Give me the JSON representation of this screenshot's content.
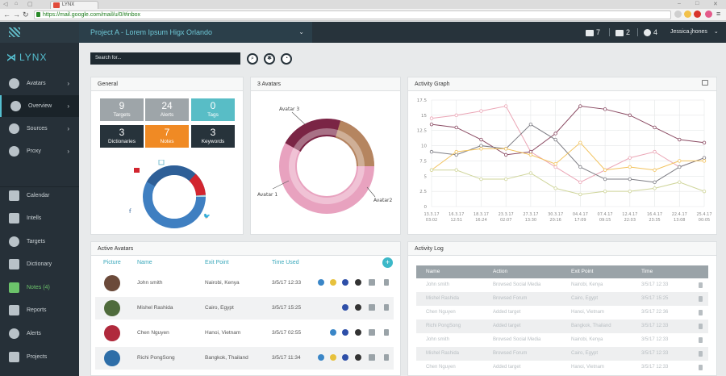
{
  "browser": {
    "tab_title": "LYNX",
    "url": "https://mail.google.com/mail/u/0/#inbox"
  },
  "sidebar": {
    "brand": "LYNX",
    "items": [
      {
        "label": "Avatars",
        "icon": "user-icon",
        "chevron": "›"
      },
      {
        "label": "Overview",
        "icon": "eye-icon",
        "chevron": "›"
      },
      {
        "label": "Sources",
        "icon": "globe-icon",
        "chevron": "›"
      },
      {
        "label": "Proxy",
        "icon": "shield-icon",
        "chevron": "›"
      },
      {
        "label": "Calendar",
        "icon": "calendar-icon"
      },
      {
        "label": "Intells",
        "icon": "search-list-icon"
      },
      {
        "label": "Targets",
        "icon": "target-icon"
      },
      {
        "label": "Dictionary",
        "icon": "book-icon"
      },
      {
        "label": "Notes (4)",
        "icon": "notes-icon"
      },
      {
        "label": "Reports",
        "icon": "report-icon"
      },
      {
        "label": "Alerts",
        "icon": "bell-icon"
      },
      {
        "label": "Projects",
        "icon": "folder-icon"
      }
    ]
  },
  "header": {
    "project": "Project A - Lorem Ipsum Higx Orlando",
    "mail_count": "7",
    "notes_count": "2",
    "tasks_count": "4",
    "user": "Jessica.jhones"
  },
  "search": {
    "placeholder": "Search for..."
  },
  "general": {
    "title": "General",
    "tiles": [
      {
        "value": "9",
        "label": "Targets",
        "color": "#9ea5a9"
      },
      {
        "value": "24",
        "label": "Alerts",
        "color": "#9ea5a9"
      },
      {
        "value": "0",
        "label": "Tags",
        "color": "#58bdc6"
      },
      {
        "value": "3",
        "label": "Dictionaries",
        "color": "#27333b"
      },
      {
        "value": "7",
        "label": "Notes",
        "color": "#f08a24"
      },
      {
        "value": "3",
        "label": "Keywords",
        "color": "#27333b"
      }
    ]
  },
  "avatars3": {
    "title": "3 Avatars",
    "labels": [
      "Avatar 3",
      "Avatar 1",
      "Avatar2"
    ]
  },
  "activity_graph": {
    "title": "Activity Graph"
  },
  "chart_data": {
    "type": "line",
    "x": [
      "13.3.17 03:02",
      "16.3.17 12:51",
      "18.3.17 16:24",
      "23.3.17 02:07",
      "27.3.17 13:30",
      "30.3.17 20:16",
      "04.4.17 17:09",
      "07.4.17 09:15",
      "12.4.17 22:03",
      "16.4.17 23:35",
      "22.4.17 13:08",
      "25.4.17 00:05"
    ],
    "ylim": [
      0,
      17.5
    ],
    "yticks": [
      "17.5",
      "15",
      "12.5",
      "10",
      "7.5",
      "5",
      "2.5",
      "0"
    ],
    "series": [
      {
        "values": [
          14.5,
          15,
          15.7,
          16.5,
          9,
          6.5,
          4,
          6,
          8,
          9,
          6.5,
          8
        ],
        "color": "#eba6b6"
      },
      {
        "values": [
          13.5,
          13,
          11,
          8.5,
          9,
          12,
          16.5,
          16,
          15,
          13,
          11,
          10.5
        ],
        "color": "#8a4a62"
      },
      {
        "values": [
          9,
          8.5,
          10,
          9.5,
          13.5,
          11,
          6.5,
          4.5,
          4.5,
          4,
          6.5,
          8
        ],
        "color": "#7d7d84"
      },
      {
        "values": [
          6,
          9,
          9.5,
          9.5,
          8.5,
          7,
          10.5,
          6,
          6.5,
          6,
          7.5,
          7.5
        ],
        "color": "#f2c35e"
      },
      {
        "values": [
          6,
          6,
          4.5,
          4.5,
          5.5,
          3,
          2,
          2.5,
          2.5,
          3,
          4,
          2.5
        ],
        "color": "#cfd59a"
      }
    ]
  },
  "active_avatars": {
    "title": "Active Avatars",
    "columns": [
      "Picture",
      "Name",
      "Exit Point",
      "Time Used"
    ],
    "rows": [
      {
        "name": "John smith",
        "exit": "Nairobi, Kenya",
        "time": "3/5/17  12:33",
        "avatar_color": "#6b4a3a"
      },
      {
        "name": "Mishel Rashida",
        "exit": "Cairo, Egypt",
        "time": "3/5/17  15:25",
        "avatar_color": "#4f6b3c"
      },
      {
        "name": "Chen Nguyen",
        "exit": "Hanoi, Vietnam",
        "time": "3/5/17  02:55",
        "avatar_color": "#b0293c"
      },
      {
        "name": "Richi PongSong",
        "exit": "Bangkok, Thailand",
        "time": "3/5/17  11:34",
        "avatar_color": "#2e6ea8"
      }
    ]
  },
  "activity_log": {
    "title": "Activity Log",
    "columns": [
      "Name",
      "Action",
      "Exit Point",
      "Time"
    ],
    "rows": [
      {
        "name": "John smith",
        "action": "Browsed Social Media",
        "exit": "Nairobi, Kenya",
        "time": "3/5/17  12:33"
      },
      {
        "name": "Mishel Rashida",
        "action": "Browsed Forum",
        "exit": "Cairo, Egypt",
        "time": "3/5/17  15:25"
      },
      {
        "name": "Chen Nguyen",
        "action": "Added target",
        "exit": "Hanoi, Vietnam",
        "time": "3/5/17  22:36"
      },
      {
        "name": "Richi PongSong",
        "action": "Added target",
        "exit": "Bangkok, Thailand",
        "time": "3/5/17  12:33"
      },
      {
        "name": "John smith",
        "action": "Browsed Social Media",
        "exit": "Nairobi, Kenya",
        "time": "3/5/17  12:33"
      },
      {
        "name": "Mishel Rashida",
        "action": "Browsed Forum",
        "exit": "Cairo, Egypt",
        "time": "3/5/17  12:33"
      },
      {
        "name": "Chen Nguyen",
        "action": "Added target",
        "exit": "Hanoi, Vietnam",
        "time": "3/5/17  12:33"
      }
    ]
  }
}
